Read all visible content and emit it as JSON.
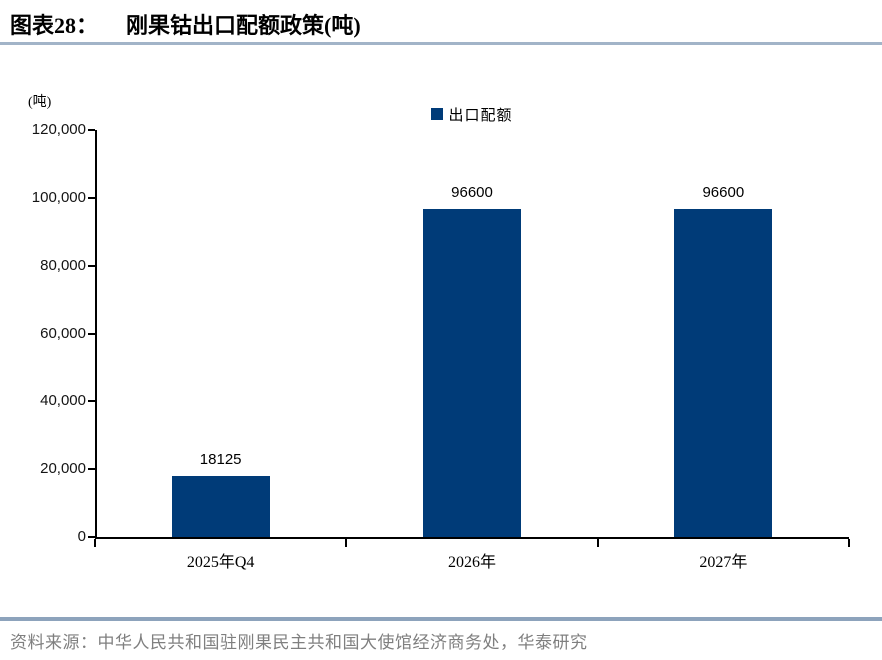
{
  "header": {
    "title_prefix": "图表28：",
    "title_main": "刚果钴出口配额政策(吨)"
  },
  "footer": {
    "source": "资料来源：中华人民共和国驻刚果民主共和国大使馆经济商务处，华泰研究"
  },
  "colors": {
    "bar": "#003b78",
    "title_rule": "#a2b4c8",
    "footer_rule": "#8da3bc",
    "axis": "#000000",
    "footer_text": "#7f7f7f"
  },
  "chart_data": {
    "type": "bar",
    "title": "刚果钴出口配额政策(吨)",
    "unit_label": "(吨)",
    "categories": [
      "2025年Q4",
      "2026年",
      "2027年"
    ],
    "series": [
      {
        "name": "出口配额",
        "color": "#003b78",
        "values": [
          18125,
          96600,
          96600
        ]
      }
    ],
    "value_labels": [
      "18125",
      "96600",
      "96600"
    ],
    "ylabel": "(吨)",
    "xlabel": "",
    "ylim": [
      0,
      120000
    ],
    "ytick_step": 20000,
    "ytick_labels": [
      "0",
      "20,000",
      "40,000",
      "60,000",
      "80,000",
      "100,000",
      "120,000"
    ],
    "grid": false,
    "legend": [
      {
        "label": "出口配额",
        "color": "#003b78"
      }
    ],
    "legend_position": "top-center"
  }
}
